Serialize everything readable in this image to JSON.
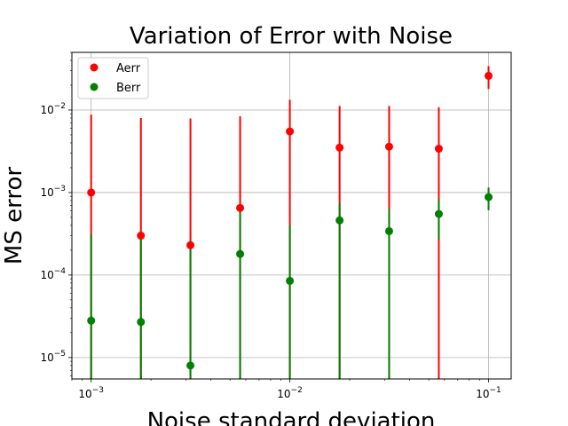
{
  "chart_data": {
    "type": "scatter",
    "title": "Variation of Error with Noise",
    "xlabel": "Noise standard deviation",
    "ylabel": "MS error",
    "xscale": "log",
    "yscale": "log",
    "xlim": [
      0.0008,
      0.13
    ],
    "ylim": [
      5.5e-06,
      0.05
    ],
    "grid": true,
    "legend_position": "upper-left",
    "x_ticks": [
      {
        "value": 0.001,
        "base": "10",
        "exp": "−3"
      },
      {
        "value": 0.01,
        "base": "10",
        "exp": "−2"
      },
      {
        "value": 0.1,
        "base": "10",
        "exp": "−1"
      }
    ],
    "y_ticks": [
      {
        "value": 1e-05,
        "base": "10",
        "exp": "−5"
      },
      {
        "value": 0.0001,
        "base": "10",
        "exp": "−4"
      },
      {
        "value": 0.001,
        "base": "10",
        "exp": "−3"
      },
      {
        "value": 0.01,
        "base": "10",
        "exp": "−2"
      }
    ],
    "x": [
      0.001,
      0.00178,
      0.00316,
      0.00562,
      0.01,
      0.0178,
      0.0316,
      0.0562,
      0.1
    ],
    "series": [
      {
        "name": "Aerr",
        "color": "#ff0000",
        "values": [
          0.001,
          0.0003,
          0.00023,
          0.00065,
          0.0055,
          0.0035,
          0.0036,
          0.0034,
          0.026
        ],
        "err_low": [
          5.5e-06,
          5.5e-06,
          5.5e-06,
          5.5e-06,
          5.5e-06,
          5.5e-06,
          5.5e-06,
          5.5e-06,
          0.018
        ],
        "err_high": [
          0.0088,
          0.008,
          0.0079,
          0.0084,
          0.0133,
          0.0112,
          0.0112,
          0.0108,
          0.034
        ]
      },
      {
        "name": "Berr",
        "color": "#008000",
        "values": [
          2.8e-05,
          2.7e-05,
          8e-06,
          0.00018,
          8.5e-05,
          0.00046,
          0.00034,
          0.00055,
          0.00088
        ],
        "err_low": [
          5.5e-06,
          5.5e-06,
          5.5e-06,
          5.5e-06,
          5.5e-06,
          5.5e-06,
          5.5e-06,
          0.00027,
          0.00061
        ],
        "err_high": [
          0.00031,
          0.00029,
          0.00026,
          0.00058,
          0.0004,
          0.00074,
          0.00063,
          0.00082,
          0.00115
        ]
      }
    ]
  }
}
